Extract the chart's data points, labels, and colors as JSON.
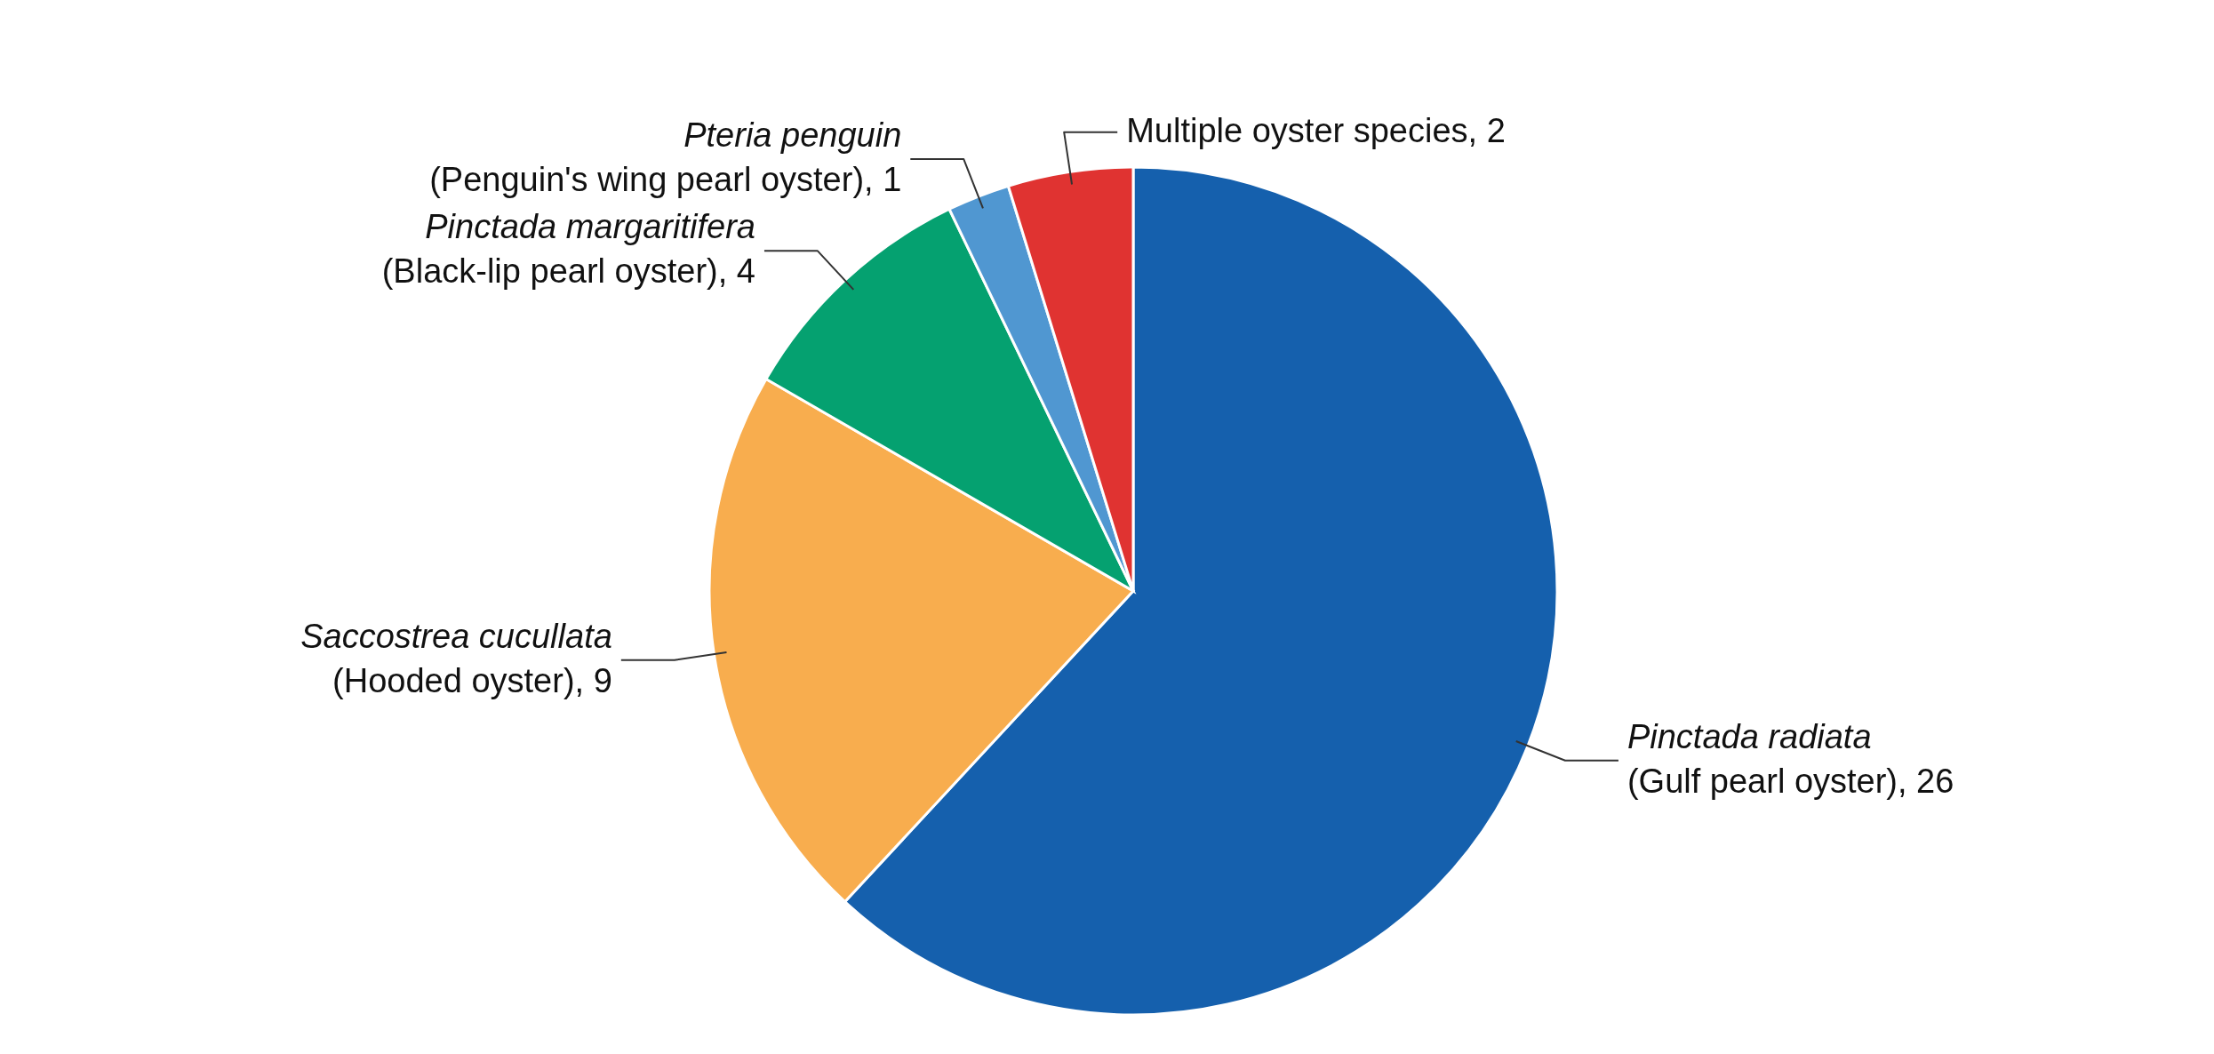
{
  "chart_data": {
    "type": "pie",
    "categories": [
      "Pinctada radiata (Gulf pearl oyster)",
      "Saccostrea cucullata (Hooded oyster)",
      "Pinctada margaritifera (Black-lip pearl oyster)",
      "Pteria penguin (Penguin's wing pearl oyster)",
      "Multiple oyster species"
    ],
    "values": [
      26,
      9,
      4,
      1,
      2
    ],
    "colors": [
      "#1560ad",
      "#f8ad4e",
      "#05a170",
      "#5097d1",
      "#e03331"
    ],
    "value_labels": [
      ", 26",
      ", 9",
      ", 4",
      ", 1",
      ", 2"
    ]
  }
}
